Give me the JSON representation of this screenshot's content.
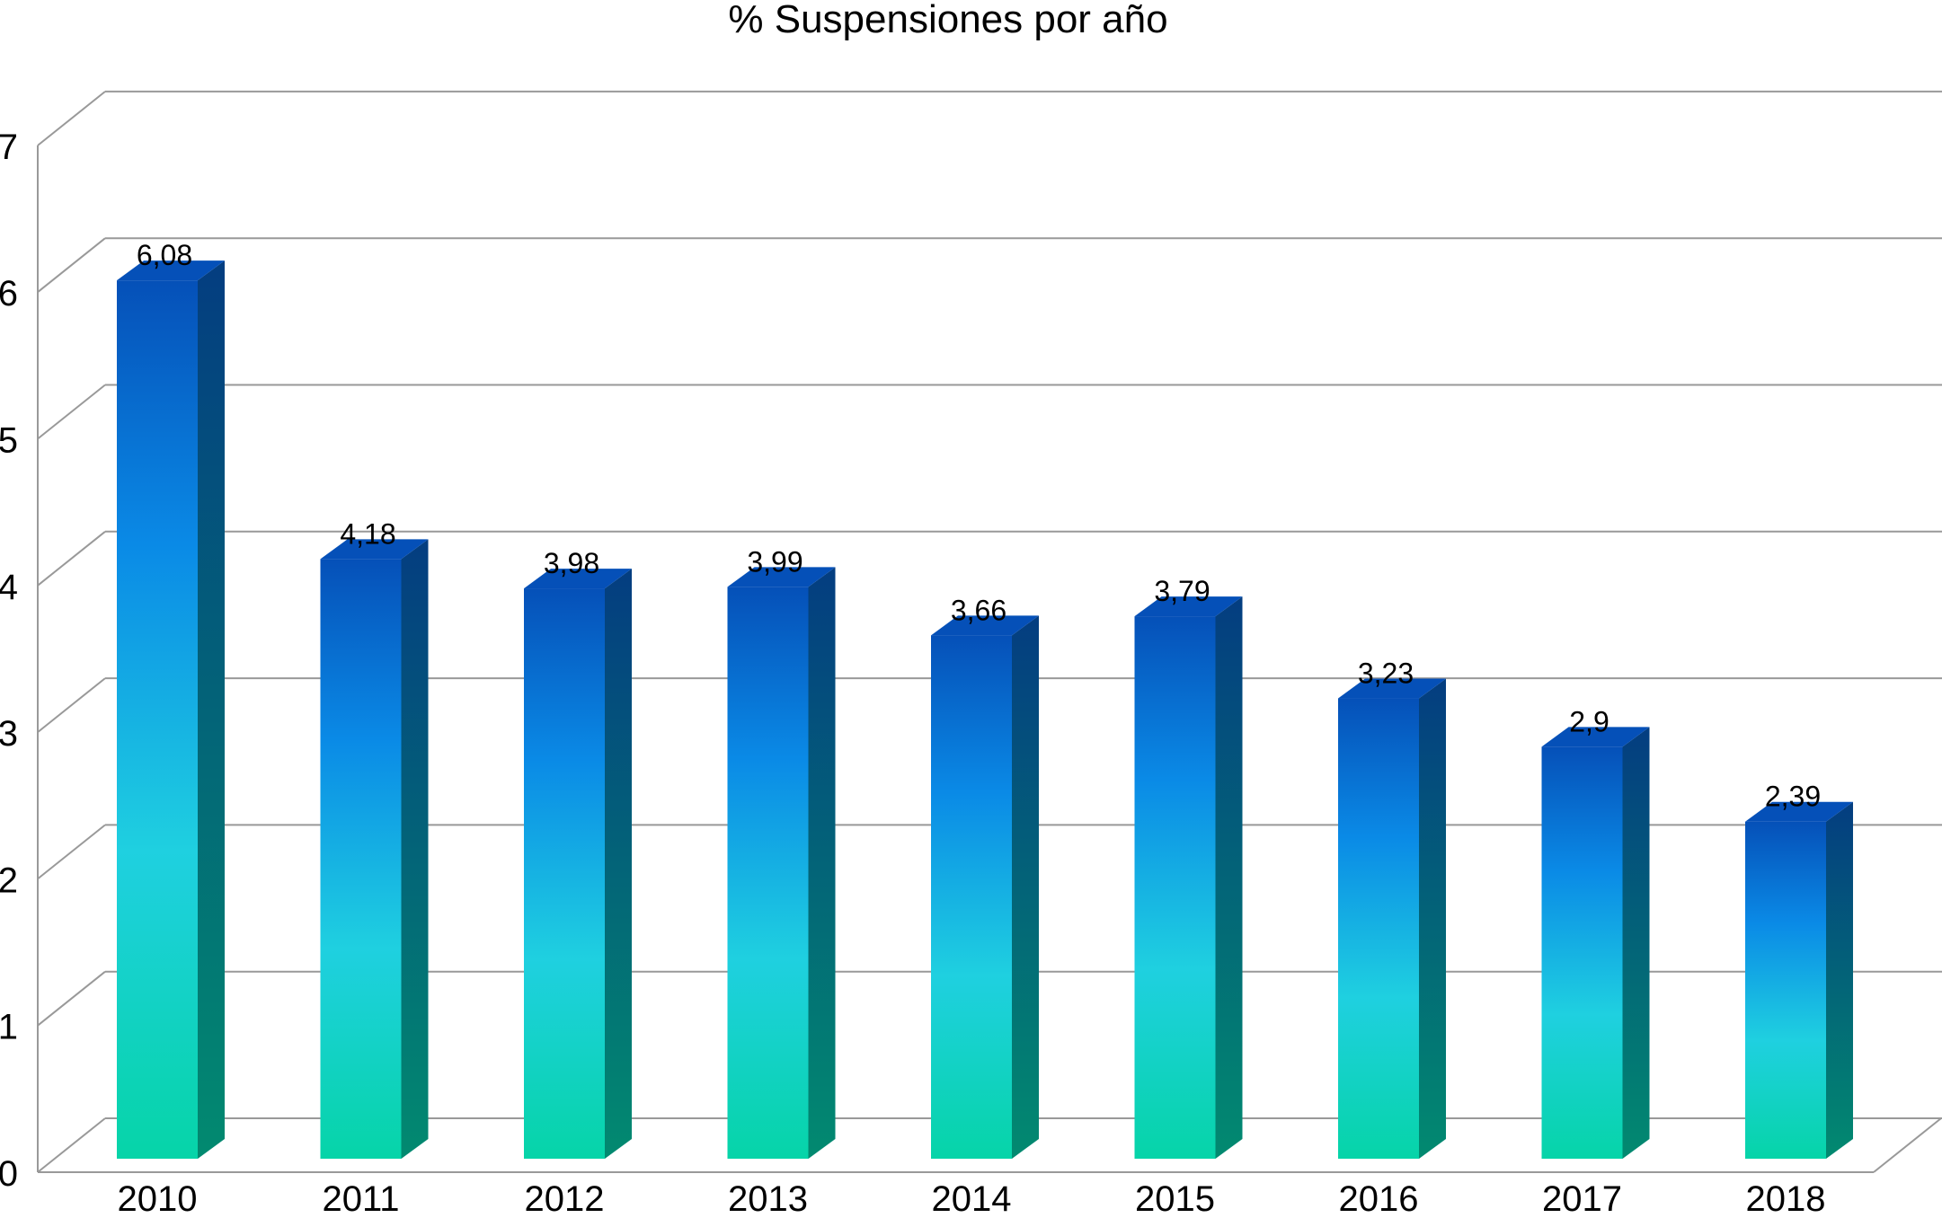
{
  "chart_data": {
    "type": "bar",
    "title": "% Suspensiones por año",
    "xlabel": "",
    "ylabel": "",
    "categories": [
      "2010",
      "2011",
      "2012",
      "2013",
      "2014",
      "2015",
      "2016",
      "2017",
      "2018"
    ],
    "values": [
      6.08,
      4.18,
      3.98,
      3.99,
      3.66,
      3.79,
      3.23,
      2.9,
      2.39
    ],
    "value_labels": [
      "6,08",
      "4,18",
      "3,98",
      "3,99",
      "3,66",
      "3,79",
      "3,23",
      "2,9",
      "2,39"
    ],
    "y_ticks": [
      0,
      1,
      2,
      3,
      4,
      5,
      6,
      7
    ],
    "ylim": [
      0,
      7
    ],
    "grid": true,
    "legend": "none",
    "style": "3d-bars",
    "colors": {
      "bar_top": "#0550b8",
      "bar_mid": "#0a8ae6",
      "bar_light": "#1fd0e0",
      "bar_bottom": "#06d4a8",
      "bar_side_top": "#043d80",
      "bar_side_bottom": "#028a70",
      "gridline": "#999999"
    }
  }
}
